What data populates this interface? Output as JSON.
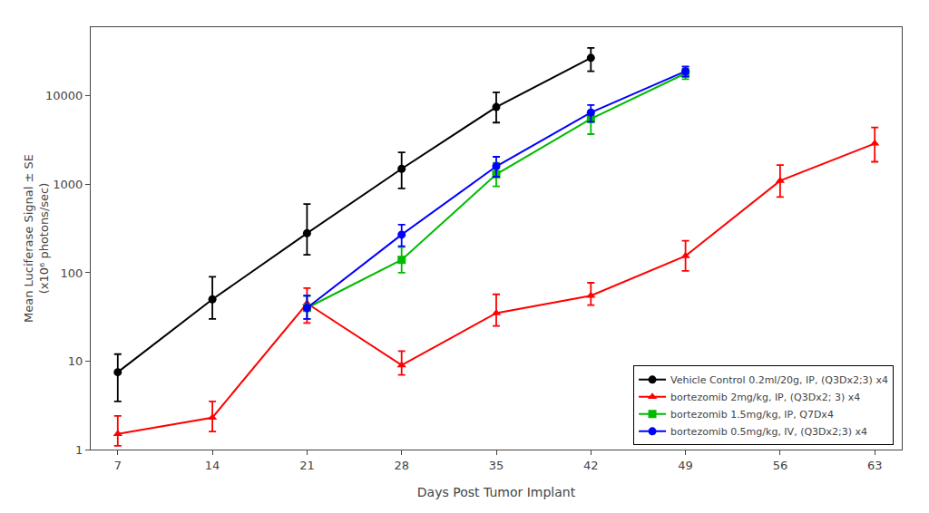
{
  "chart_data": {
    "type": "line",
    "xlabel": "Days Post Tumor Implant",
    "ylabel": "Mean Luciferase Signal ± SE\n(x10⁶ photons/sec)",
    "x": [
      7,
      14,
      21,
      28,
      35,
      42,
      49,
      56,
      63
    ],
    "series": [
      {
        "name": "Vehicle Control 0.2ml/20g, IP, (Q3Dx2;3) x4",
        "color": "#000000",
        "marker": "circle",
        "values": [
          7.5,
          50,
          280,
          1500,
          7500,
          27000,
          null,
          null,
          null
        ],
        "yerr_lo": [
          4.0,
          20,
          120,
          600,
          2500,
          8000,
          null,
          null,
          null
        ],
        "yerr_hi": [
          4.5,
          40,
          320,
          800,
          3500,
          8000,
          null,
          null,
          null
        ]
      },
      {
        "name": "bortezomib 2mg/kg, IP, (Q3Dx2; 3) x4",
        "color": "#ff0000",
        "marker": "triangle-up",
        "values": [
          1.5,
          2.3,
          45,
          9,
          35,
          55,
          155,
          1100,
          2900
        ],
        "yerr_lo": [
          0.4,
          0.7,
          18,
          2,
          10,
          12,
          50,
          380,
          1100
        ],
        "yerr_hi": [
          0.9,
          1.2,
          22,
          4,
          22,
          22,
          75,
          550,
          1500
        ]
      },
      {
        "name": "bortezomib 1.5mg/kg, IP, Q7Dx4",
        "color": "#00bb00",
        "marker": "square",
        "values": [
          null,
          null,
          40,
          140,
          1300,
          5500,
          18000,
          null,
          null
        ],
        "yerr_lo": [
          null,
          null,
          10,
          40,
          350,
          1800,
          2500,
          null,
          null
        ],
        "yerr_hi": [
          null,
          null,
          15,
          55,
          450,
          1200,
          2500,
          null,
          null
        ]
      },
      {
        "name": "bortezomib 0.5mg/kg, IV, (Q3Dx2;3) x4",
        "color": "#0000ff",
        "marker": "circle",
        "values": [
          null,
          null,
          40,
          270,
          1600,
          6500,
          19000,
          null,
          null
        ],
        "yerr_lo": [
          null,
          null,
          10,
          70,
          380,
          1400,
          2500,
          null,
          null
        ],
        "yerr_hi": [
          null,
          null,
          15,
          80,
          450,
          1400,
          2500,
          null,
          null
        ]
      }
    ],
    "xlim": [
      5,
      65
    ],
    "ylim": [
      1,
      60000
    ],
    "xticks": [
      7,
      14,
      21,
      28,
      35,
      42,
      49,
      56,
      63
    ],
    "yticks": [
      1,
      10,
      100,
      1000,
      10000
    ],
    "log": "y",
    "grid": false,
    "legend": "lower right"
  }
}
